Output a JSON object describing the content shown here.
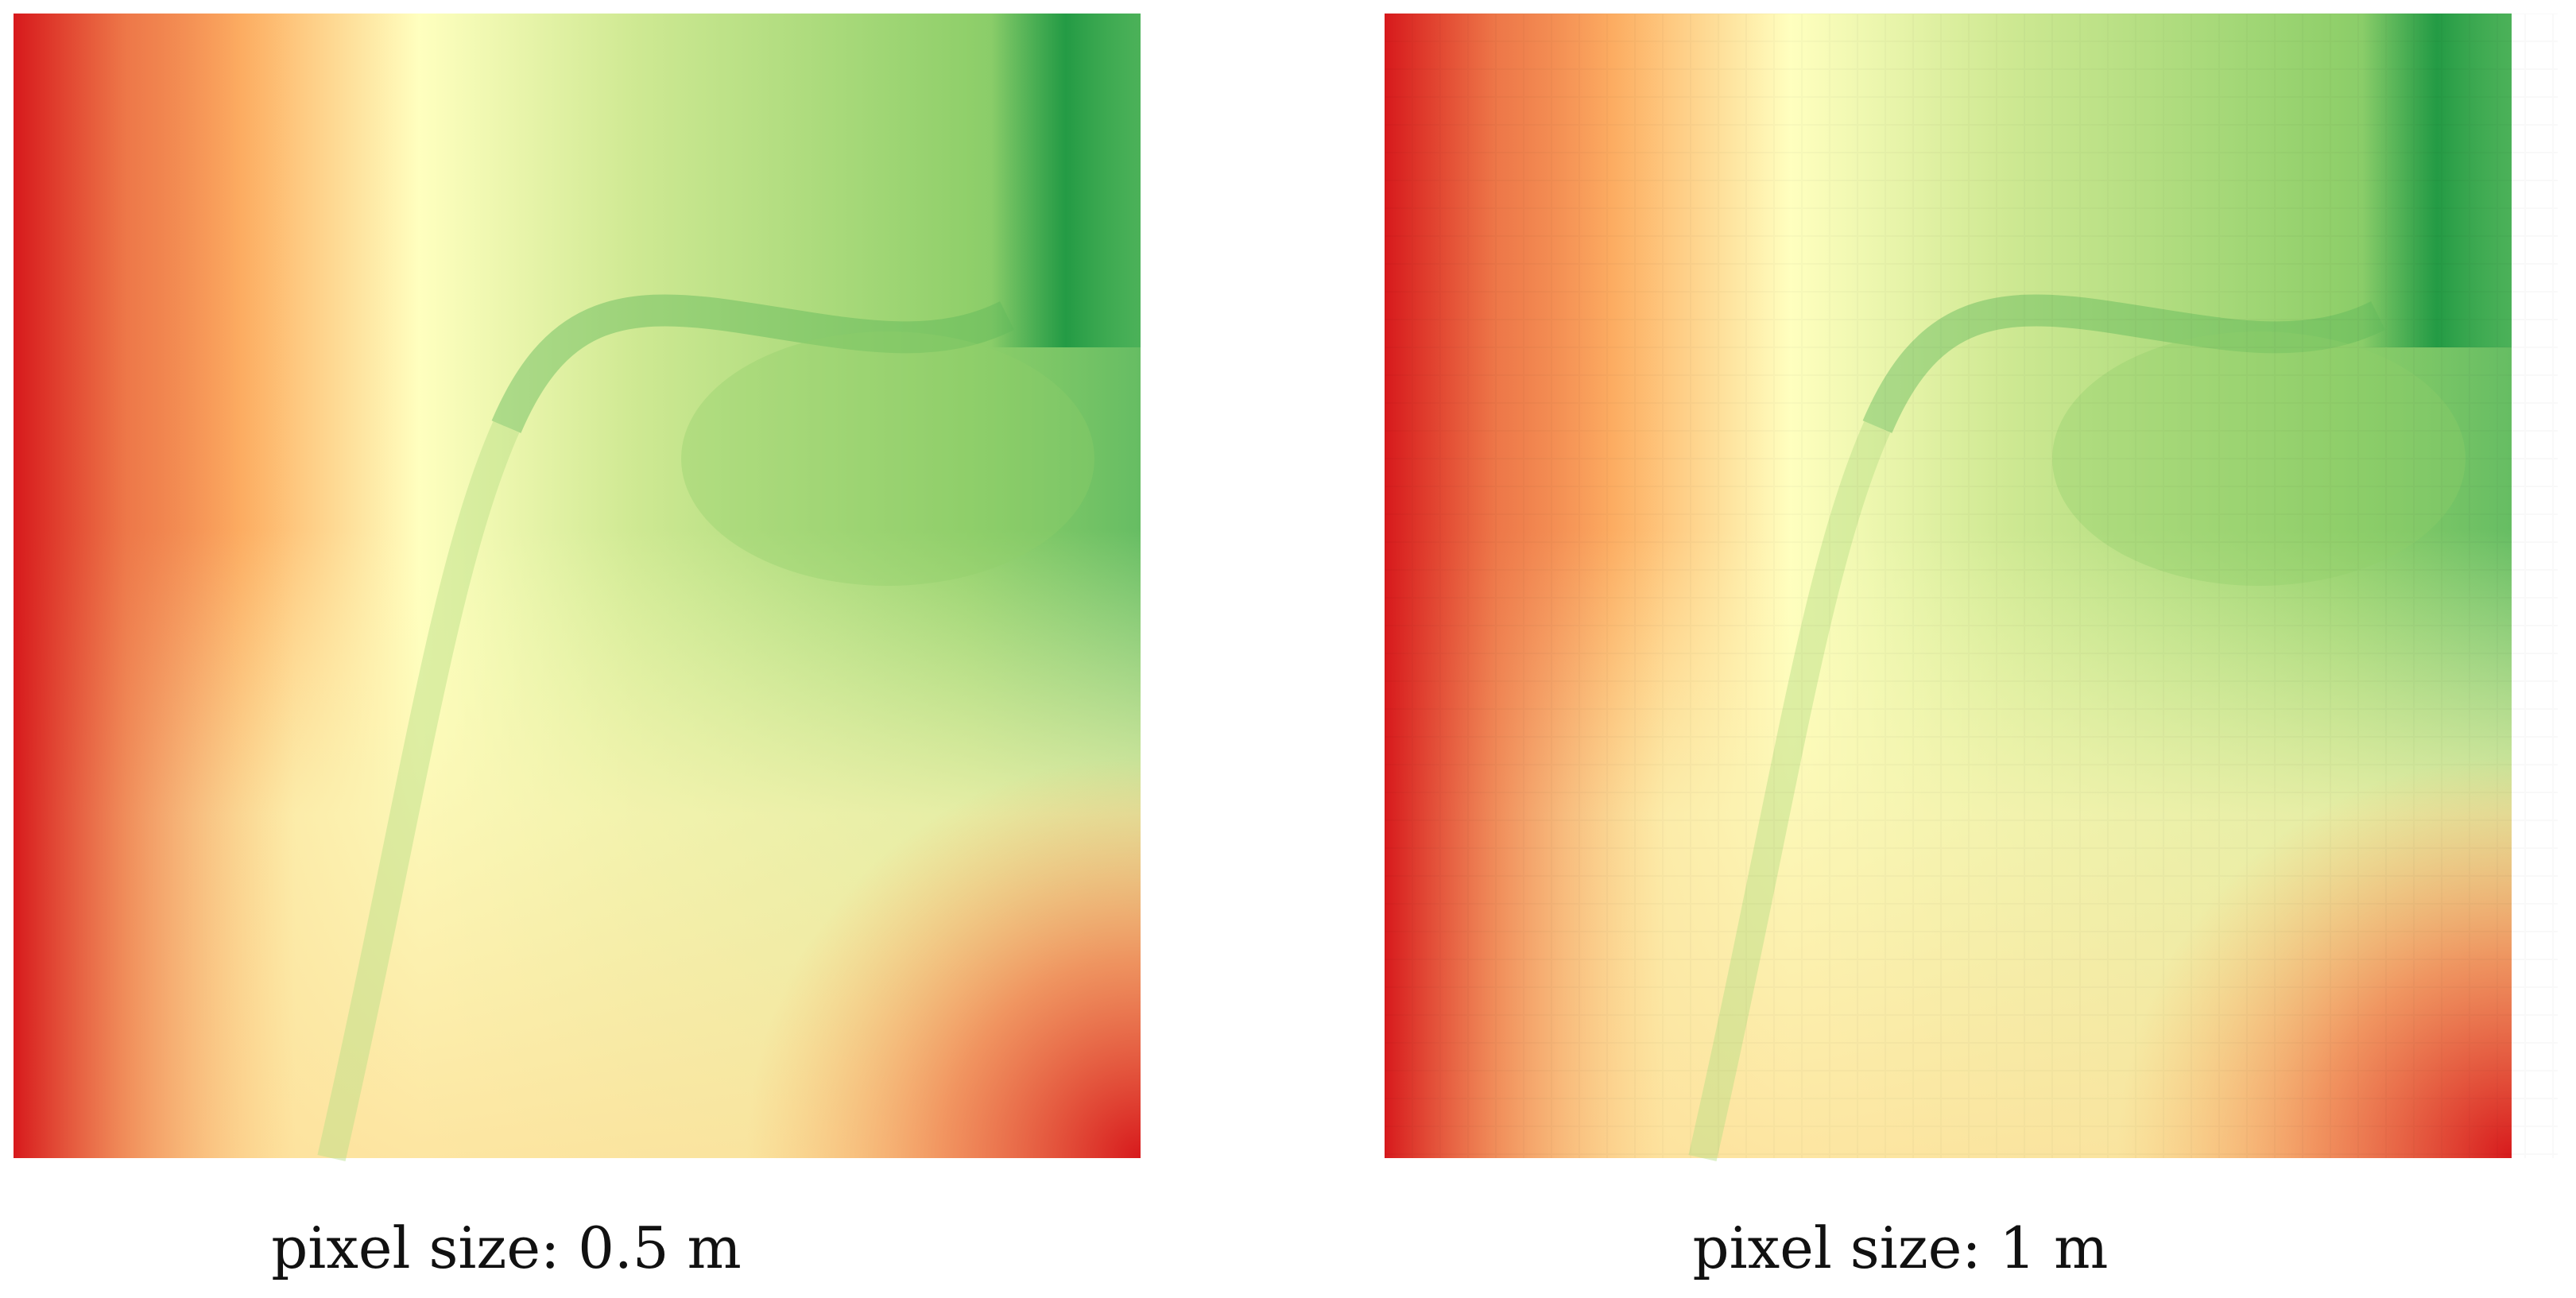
{
  "panels": [
    {
      "caption": "pixel size: 0.5 m"
    },
    {
      "caption": "pixel size: 1 m"
    }
  ]
}
